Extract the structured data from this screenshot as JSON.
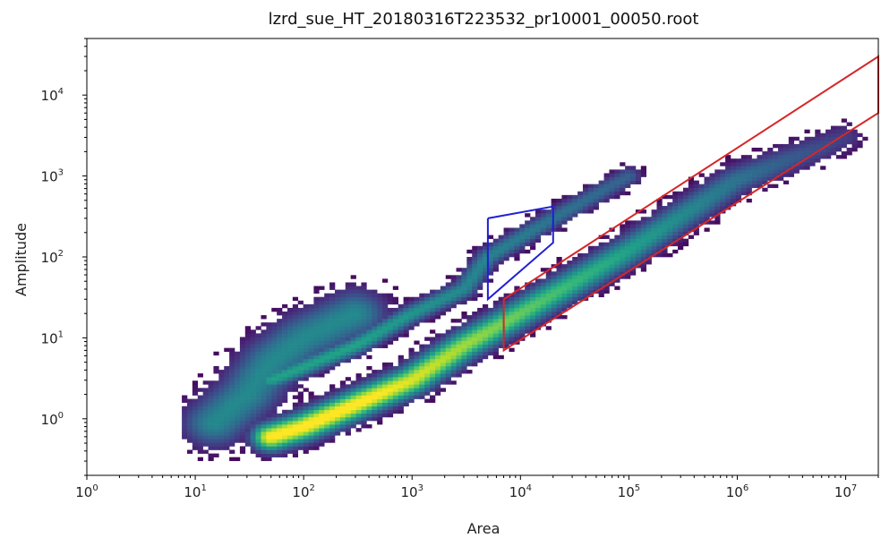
{
  "chart_data": {
    "type": "heatmap",
    "title": "lzrd_sue_HT_20180316T223532_pr10001_00050.root",
    "xlabel": "Area",
    "ylabel": "Amplitude",
    "xscale": "log",
    "yscale": "log",
    "xlim": [
      1,
      20000000
    ],
    "ylim": [
      0.2,
      50000
    ],
    "colormap": "viridis",
    "grid": false,
    "x_ticks": [
      {
        "value": 1,
        "base": "10",
        "exp": "0"
      },
      {
        "value": 10,
        "base": "10",
        "exp": "1"
      },
      {
        "value": 100,
        "base": "10",
        "exp": "2"
      },
      {
        "value": 1000,
        "base": "10",
        "exp": "3"
      },
      {
        "value": 10000,
        "base": "10",
        "exp": "4"
      },
      {
        "value": 100000,
        "base": "10",
        "exp": "5"
      },
      {
        "value": 1000000,
        "base": "10",
        "exp": "6"
      },
      {
        "value": 10000000,
        "base": "10",
        "exp": "7"
      }
    ],
    "y_ticks": [
      {
        "value": 1,
        "base": "10",
        "exp": "0"
      },
      {
        "value": 10,
        "base": "10",
        "exp": "1"
      },
      {
        "value": 100,
        "base": "10",
        "exp": "2"
      },
      {
        "value": 1000,
        "base": "10",
        "exp": "3"
      },
      {
        "value": 10000,
        "base": "10",
        "exp": "4"
      }
    ],
    "regions": [
      {
        "color": "#1f1fd6",
        "points": [
          [
            5000,
            300
          ],
          [
            20000,
            420
          ],
          [
            20000,
            150
          ],
          [
            5000,
            30
          ]
        ]
      },
      {
        "color": "#d62728",
        "points": [
          [
            7000,
            30
          ],
          [
            20000000,
            30000
          ],
          [
            20000000,
            6000
          ],
          [
            7000,
            7
          ]
        ]
      }
    ],
    "density_bands": [
      {
        "points": [
          [
            50,
            0.6
          ],
          [
            100,
            0.8
          ],
          [
            300,
            1.5
          ],
          [
            1000,
            3
          ],
          [
            3000,
            8
          ],
          [
            10000,
            20
          ],
          [
            100000,
            120
          ],
          [
            1000000,
            900
          ],
          [
            10000000,
            3000
          ]
        ],
        "peak": 1.0,
        "width": 0.12
      },
      {
        "points": [
          [
            50,
            3
          ],
          [
            300,
            8
          ],
          [
            1000,
            20
          ],
          [
            3000,
            40
          ],
          [
            5000,
            100
          ],
          [
            20000,
            300
          ],
          [
            100000,
            1000
          ]
        ],
        "peak": 0.55,
        "width": 0.08
      },
      {
        "points": [
          [
            15,
            0.9
          ],
          [
            30,
            2
          ],
          [
            50,
            5
          ],
          [
            100,
            10
          ],
          [
            300,
            20
          ]
        ],
        "peak": 0.45,
        "width": 0.2
      }
    ]
  }
}
